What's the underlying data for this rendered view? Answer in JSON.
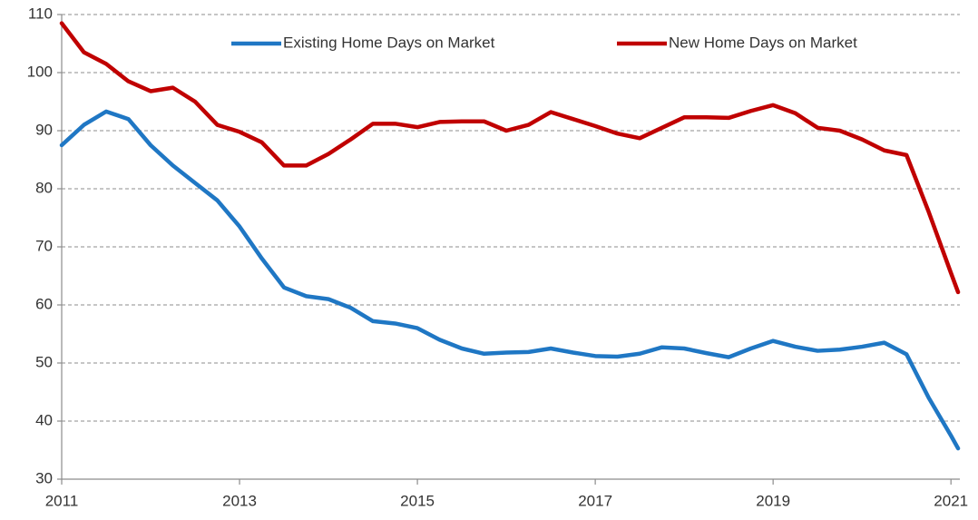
{
  "chart_data": {
    "type": "line",
    "x": [
      2011,
      2011.25,
      2011.5,
      2011.75,
      2012,
      2012.25,
      2012.5,
      2012.75,
      2013,
      2013.25,
      2013.5,
      2013.75,
      2014,
      2014.25,
      2014.5,
      2014.75,
      2015,
      2015.25,
      2015.5,
      2015.75,
      2016,
      2016.25,
      2016.5,
      2016.75,
      2017,
      2017.25,
      2017.5,
      2017.75,
      2018,
      2018.25,
      2018.5,
      2018.75,
      2019,
      2019.25,
      2019.5,
      2019.75,
      2020,
      2020.25,
      2020.5,
      2020.75,
      2021,
      2021.08
    ],
    "series": [
      {
        "name": "Existing Home Days on Market",
        "color": "#1f77c4",
        "values": [
          87.5,
          91,
          93.3,
          92,
          87.5,
          84,
          81,
          78,
          73.5,
          68,
          63,
          61.5,
          61,
          59.5,
          57.2,
          56.8,
          56,
          54,
          52.5,
          51.6,
          51.8,
          51.9,
          52.5,
          51.8,
          51.2,
          51.1,
          51.6,
          52.7,
          52.5,
          51.7,
          51,
          52.5,
          53.8,
          52.8,
          52.1,
          52.3,
          52.8,
          53.5,
          51.5,
          44,
          37.5,
          35.3
        ]
      },
      {
        "name": "New Home Days on Market",
        "color": "#c00000",
        "values": [
          108.5,
          103.5,
          101.5,
          98.5,
          96.8,
          97.4,
          95,
          91,
          89.8,
          88,
          84,
          84,
          86,
          88.5,
          91.2,
          91.2,
          90.6,
          91.5,
          91.6,
          91.6,
          90,
          91,
          93.2,
          92,
          90.8,
          89.5,
          88.7,
          90.5,
          92.3,
          92.3,
          92.2,
          93.4,
          94.4,
          93,
          90.5,
          90,
          88.5,
          86.6,
          85.8,
          76,
          65.5,
          62.2
        ]
      }
    ],
    "xlim": [
      2011,
      2021.1
    ],
    "xticks": [
      2011,
      2013,
      2015,
      2017,
      2019,
      2021
    ],
    "ylim": [
      30,
      110
    ],
    "yticks": [
      30,
      40,
      50,
      60,
      70,
      80,
      90,
      100,
      110
    ],
    "grid": true,
    "legend": "top"
  }
}
